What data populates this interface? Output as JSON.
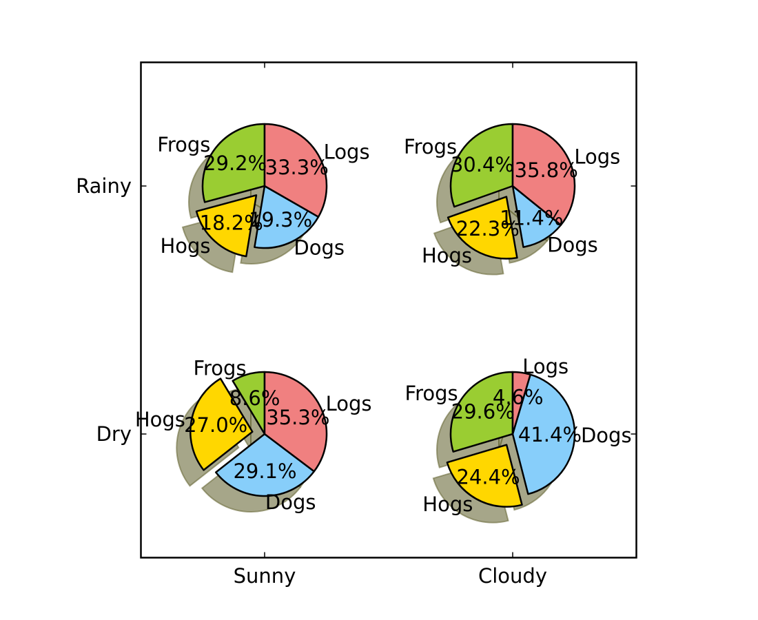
{
  "chart_data": {
    "type": "pie",
    "layout": "2x2 grid of pie charts with drop shadows",
    "xticklabels": [
      "Sunny",
      "Cloudy"
    ],
    "yticklabels": [
      "Rainy",
      "Dry"
    ],
    "labels": [
      "Frogs",
      "Hogs",
      "Dogs",
      "Logs"
    ],
    "colors": {
      "Frogs": "#9acd32",
      "Hogs": "#ffd700",
      "Dogs": "#87cefa",
      "Logs": "#f08080",
      "shadow": "#6b6b3a"
    },
    "explode": {
      "Frogs": 0,
      "Hogs": 0.2,
      "Dogs": 0,
      "Logs": 0
    },
    "pies": [
      {
        "row": "Rainy",
        "col": "Sunny",
        "labels": [
          "Frogs",
          "Hogs",
          "Dogs",
          "Logs"
        ],
        "values": [
          29.2,
          18.2,
          19.3,
          33.3
        ],
        "pct_labels": [
          "29.2%",
          "18.2%",
          "19.3%",
          "33.3%"
        ]
      },
      {
        "row": "Rainy",
        "col": "Cloudy",
        "labels": [
          "Frogs",
          "Hogs",
          "Dogs",
          "Logs"
        ],
        "values": [
          30.4,
          22.3,
          11.4,
          35.8
        ],
        "pct_labels": [
          "30.4%",
          "22.3%",
          "11.4%",
          "35.8%"
        ]
      },
      {
        "row": "Dry",
        "col": "Sunny",
        "labels": [
          "Frogs",
          "Hogs",
          "Dogs",
          "Logs"
        ],
        "values": [
          8.6,
          27.0,
          29.1,
          35.3
        ],
        "pct_labels": [
          "8.6%",
          "27.0%",
          "29.1%",
          "35.3%"
        ]
      },
      {
        "row": "Dry",
        "col": "Cloudy",
        "labels": [
          "Frogs",
          "Hogs",
          "Dogs",
          "Logs"
        ],
        "values": [
          29.6,
          24.4,
          41.4,
          4.6
        ],
        "pct_labels": [
          "29.6%",
          "24.4%",
          "41.4%",
          "4.6%"
        ]
      }
    ]
  }
}
